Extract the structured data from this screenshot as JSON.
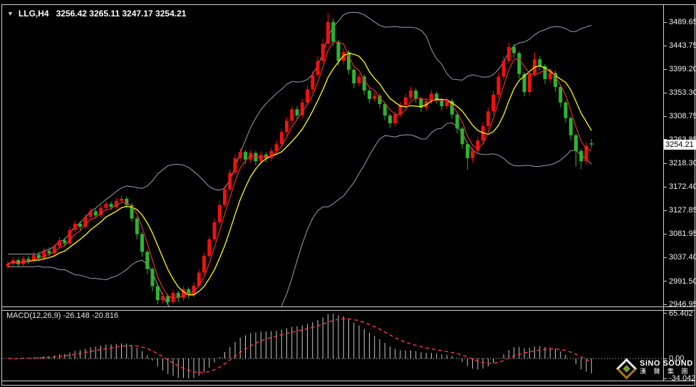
{
  "window": {
    "dropdown_icon": "▼",
    "symbol_period": "LLG,H4",
    "ohlc_text": "3256.42 3265.11 3247.17 3254.21"
  },
  "colors": {
    "background": "#000000",
    "bull_candle": "#ef1010",
    "bear_candle": "#2eb42e",
    "bollinger_band": "#9aa0a8",
    "ma_mid": "#ffff00",
    "ma_fast": "#e03030",
    "histogram": "#c8c8c8",
    "signal_line": "#ff3b3b",
    "axis_text": "#f2f2f2",
    "badge_bg": "#ffffff",
    "badge_text": "#000000",
    "frame": "#d0d0d0"
  },
  "price_axis": {
    "ticks": [
      "3489.65",
      "3443.75",
      "3399.20",
      "3353.30",
      "3308.75",
      "3263.85",
      "3218.30",
      "3172.40",
      "3127.85",
      "3081.95",
      "3037.40",
      "2991.50",
      "2946.95"
    ],
    "current_badge": "3254.21"
  },
  "macd_panel": {
    "label": "MACD(12,26,9) -26.148 -20.816",
    "ticks": [
      "65.402",
      "0.00",
      "-34.042"
    ]
  },
  "logo": {
    "line1": "SiNO SOUND",
    "line2": "漢 聲 集 團"
  },
  "chart_data": [
    {
      "type": "candlestick",
      "title": "LLG,H4",
      "open": 3256.42,
      "high": 3265.11,
      "low": 3247.17,
      "close": 3254.21,
      "current_price": 3254.21,
      "ylim": [
        2946,
        3516
      ],
      "y_ticks": [
        3489.65,
        3443.75,
        3399.2,
        3353.3,
        3308.75,
        3263.85,
        3218.3,
        3172.4,
        3127.85,
        3081.95,
        3037.4,
        2991.5,
        2946.95
      ],
      "overlays": {
        "bollinger_period": 20,
        "bollinger_deviation": 2,
        "ma_mid_period": 8,
        "ma_fast_period": 4
      },
      "candles": [
        [
          3020,
          3030,
          3015,
          3025
        ],
        [
          3025,
          3037,
          3020,
          3032
        ],
        [
          3032,
          3036,
          3018,
          3024
        ],
        [
          3024,
          3040,
          3020,
          3035
        ],
        [
          3035,
          3041,
          3024,
          3030
        ],
        [
          3030,
          3047,
          3026,
          3042
        ],
        [
          3042,
          3048,
          3030,
          3036
        ],
        [
          3036,
          3056,
          3032,
          3050
        ],
        [
          3050,
          3057,
          3039,
          3045
        ],
        [
          3045,
          3063,
          3041,
          3058
        ],
        [
          3058,
          3076,
          3054,
          3070
        ],
        [
          3070,
          3075,
          3058,
          3064
        ],
        [
          3064,
          3096,
          3060,
          3090
        ],
        [
          3090,
          3108,
          3086,
          3102
        ],
        [
          3102,
          3107,
          3090,
          3096
        ],
        [
          3096,
          3121,
          3092,
          3115
        ],
        [
          3115,
          3132,
          3111,
          3126
        ],
        [
          3126,
          3130,
          3112,
          3118
        ],
        [
          3118,
          3138,
          3114,
          3132
        ],
        [
          3132,
          3146,
          3127,
          3140
        ],
        [
          3140,
          3145,
          3128,
          3134
        ],
        [
          3134,
          3152,
          3130,
          3146
        ],
        [
          3146,
          3156,
          3141,
          3150
        ],
        [
          3150,
          3154,
          3131,
          3138
        ],
        [
          3138,
          3142,
          3105,
          3112
        ],
        [
          3112,
          3116,
          3072,
          3082
        ],
        [
          3082,
          3086,
          3038,
          3048
        ],
        [
          3048,
          3052,
          3005,
          3015
        ],
        [
          3015,
          3019,
          2972,
          2982
        ],
        [
          2982,
          2986,
          2947,
          2955
        ],
        [
          2955,
          2970,
          2948,
          2963
        ],
        [
          2963,
          2967,
          2946.95,
          2951
        ],
        [
          2951,
          2975,
          2947,
          2969
        ],
        [
          2969,
          2973,
          2951,
          2959
        ],
        [
          2959,
          2982,
          2954,
          2976
        ],
        [
          2976,
          2980,
          2958,
          2966
        ],
        [
          2966,
          2989,
          2960,
          2983
        ],
        [
          2983,
          3014,
          2979,
          3008
        ],
        [
          3008,
          3046,
          3003,
          3040
        ],
        [
          3040,
          3078,
          3035,
          3072
        ],
        [
          3072,
          3111,
          3067,
          3105
        ],
        [
          3105,
          3144,
          3100,
          3138
        ],
        [
          3138,
          3175,
          3133,
          3168
        ],
        [
          3168,
          3207,
          3163,
          3200
        ],
        [
          3200,
          3235,
          3195,
          3228
        ],
        [
          3228,
          3247,
          3222,
          3240
        ],
        [
          3240,
          3244,
          3217,
          3225
        ],
        [
          3225,
          3244,
          3219,
          3238
        ],
        [
          3238,
          3242,
          3214,
          3222
        ],
        [
          3222,
          3241,
          3216,
          3235
        ],
        [
          3235,
          3240,
          3220,
          3228
        ],
        [
          3228,
          3248,
          3222,
          3242
        ],
        [
          3242,
          3262,
          3236,
          3255
        ],
        [
          3255,
          3285,
          3250,
          3278
        ],
        [
          3278,
          3307,
          3272,
          3300
        ],
        [
          3300,
          3329,
          3294,
          3322
        ],
        [
          3322,
          3328,
          3302,
          3310
        ],
        [
          3310,
          3342,
          3304,
          3335
        ],
        [
          3335,
          3368,
          3329,
          3360
        ],
        [
          3360,
          3396,
          3354,
          3388
        ],
        [
          3388,
          3424,
          3382,
          3415
        ],
        [
          3415,
          3458,
          3409,
          3448
        ],
        [
          3448,
          3506,
          3442,
          3490
        ],
        [
          3490,
          3497,
          3444,
          3452
        ],
        [
          3452,
          3456,
          3406,
          3415
        ],
        [
          3415,
          3439,
          3408,
          3432
        ],
        [
          3432,
          3436,
          3389,
          3398
        ],
        [
          3398,
          3402,
          3362,
          3372
        ],
        [
          3372,
          3391,
          3366,
          3385
        ],
        [
          3385,
          3389,
          3349,
          3358
        ],
        [
          3358,
          3362,
          3333,
          3342
        ],
        [
          3342,
          3355,
          3336,
          3348
        ],
        [
          3348,
          3352,
          3324,
          3332
        ],
        [
          3332,
          3336,
          3301,
          3310
        ],
        [
          3310,
          3314,
          3286,
          3295
        ],
        [
          3295,
          3318,
          3289,
          3312
        ],
        [
          3312,
          3337,
          3306,
          3330
        ],
        [
          3330,
          3352,
          3324,
          3345
        ],
        [
          3345,
          3365,
          3339,
          3358
        ],
        [
          3358,
          3362,
          3335,
          3342
        ],
        [
          3342,
          3346,
          3317,
          3325
        ],
        [
          3325,
          3344,
          3319,
          3338
        ],
        [
          3338,
          3359,
          3332,
          3352
        ],
        [
          3352,
          3356,
          3333,
          3340
        ],
        [
          3340,
          3344,
          3320,
          3328
        ],
        [
          3328,
          3345,
          3322,
          3338
        ],
        [
          3338,
          3342,
          3304,
          3312
        ],
        [
          3312,
          3316,
          3276,
          3285
        ],
        [
          3285,
          3289,
          3246,
          3255
        ],
        [
          3255,
          3259,
          3206,
          3228
        ],
        [
          3228,
          3249,
          3220,
          3242
        ],
        [
          3242,
          3269,
          3236,
          3262
        ],
        [
          3262,
          3297,
          3256,
          3290
        ],
        [
          3290,
          3326,
          3284,
          3318
        ],
        [
          3318,
          3358,
          3312,
          3350
        ],
        [
          3350,
          3393,
          3344,
          3385
        ],
        [
          3385,
          3424,
          3379,
          3415
        ],
        [
          3415,
          3450,
          3409,
          3442
        ],
        [
          3442,
          3447,
          3421,
          3430
        ],
        [
          3430,
          3434,
          3381,
          3390
        ],
        [
          3390,
          3394,
          3347,
          3355
        ],
        [
          3355,
          3396,
          3349,
          3390
        ],
        [
          3390,
          3432,
          3384,
          3418
        ],
        [
          3418,
          3424,
          3397,
          3405
        ],
        [
          3405,
          3409,
          3371,
          3380
        ],
        [
          3380,
          3398,
          3373,
          3392
        ],
        [
          3392,
          3396,
          3356,
          3365
        ],
        [
          3365,
          3369,
          3326,
          3335
        ],
        [
          3335,
          3339,
          3296,
          3305
        ],
        [
          3305,
          3309,
          3262,
          3272
        ],
        [
          3272,
          3276,
          3212,
          3242
        ],
        [
          3242,
          3246,
          3207,
          3222
        ],
        [
          3222,
          3258,
          3216,
          3252
        ],
        [
          3256.42,
          3265.11,
          3247.17,
          3254.21
        ]
      ]
    },
    {
      "type": "macd",
      "params": [
        12,
        26,
        9
      ],
      "macd": -26.148,
      "signal": -20.816,
      "zero": 0.0,
      "ylim": [
        -34.042,
        65.402
      ]
    }
  ]
}
